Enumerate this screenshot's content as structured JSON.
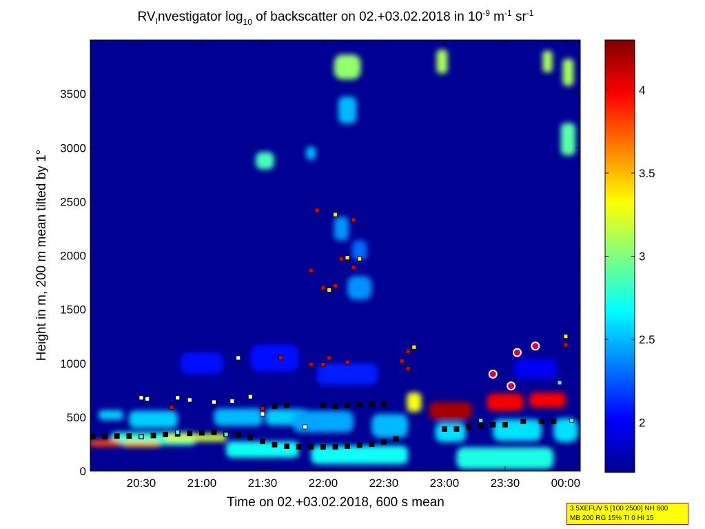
{
  "chart_data": {
    "type": "heatmap",
    "title": {
      "prefix": "RV",
      "prefix_sub": "I",
      "main": "nvestigator log",
      "log_base": "10",
      "after": " of backscatter on 02.+03.02.2018 in 10",
      "exp1": "-9",
      "unit1": " m",
      "exp2": "-1",
      "unit2": " sr",
      "exp3": "-1"
    },
    "xlabel": "Time on 02.+03.02.2018, 600 s mean",
    "ylabel": "Height in m, 200 m mean tilted by 1°",
    "x_range_hours": [
      20.08,
      24.12
    ],
    "x_ticks": [
      {
        "label": "20:30",
        "h": 20.5
      },
      {
        "label": "21:00",
        "h": 21.0
      },
      {
        "label": "21:30",
        "h": 21.5
      },
      {
        "label": "22:00",
        "h": 22.0
      },
      {
        "label": "22:30",
        "h": 22.5
      },
      {
        "label": "23:00",
        "h": 23.0
      },
      {
        "label": "23:30",
        "h": 23.5
      },
      {
        "label": "00:00",
        "h": 24.0
      }
    ],
    "ylim": [
      0,
      4000
    ],
    "y_ticks": [
      {
        "label": "0",
        "v": 0
      },
      {
        "label": "500",
        "v": 500
      },
      {
        "label": "1000",
        "v": 1000
      },
      {
        "label": "1500",
        "v": 1500
      },
      {
        "label": "2000",
        "v": 2000
      },
      {
        "label": "2500",
        "v": 2500
      },
      {
        "label": "3000",
        "v": 3000
      },
      {
        "label": "3500",
        "v": 3500
      }
    ],
    "colorbar": {
      "range": [
        1.7,
        4.3
      ],
      "ticks": [
        {
          "label": "2",
          "v": 2
        },
        {
          "label": "2.5",
          "v": 2.5
        },
        {
          "label": "3",
          "v": 3
        },
        {
          "label": "3.5",
          "v": 3.5
        },
        {
          "label": "4",
          "v": 4
        }
      ],
      "colormap": "jet"
    },
    "background_value": 1.75,
    "patches": [
      {
        "h": 20.25,
        "z": 520,
        "dh": 0.2,
        "dz": 90,
        "v": 2.55
      },
      {
        "h": 20.6,
        "z": 480,
        "dh": 0.4,
        "dz": 160,
        "v": 2.55
      },
      {
        "h": 21.3,
        "z": 500,
        "dh": 0.4,
        "dz": 160,
        "v": 2.5
      },
      {
        "h": 21.7,
        "z": 500,
        "dh": 0.35,
        "dz": 150,
        "v": 2.55
      },
      {
        "h": 22.0,
        "z": 460,
        "dh": 0.5,
        "dz": 200,
        "v": 2.45
      },
      {
        "h": 22.55,
        "z": 420,
        "dh": 0.3,
        "dz": 220,
        "v": 2.5
      },
      {
        "h": 23.05,
        "z": 360,
        "dh": 0.25,
        "dz": 180,
        "v": 2.6
      },
      {
        "h": 23.6,
        "z": 380,
        "dh": 0.4,
        "dz": 200,
        "v": 2.6
      },
      {
        "h": 24.0,
        "z": 380,
        "dh": 0.2,
        "dz": 220,
        "v": 2.6
      },
      {
        "h": 20.6,
        "z": 300,
        "dh": 0.7,
        "dz": 120,
        "v": 2.8
      },
      {
        "h": 21.5,
        "z": 200,
        "dh": 0.6,
        "dz": 150,
        "v": 2.7
      },
      {
        "h": 22.3,
        "z": 150,
        "dh": 0.8,
        "dz": 170,
        "v": 2.7
      },
      {
        "h": 23.5,
        "z": 120,
        "dh": 0.8,
        "dz": 200,
        "v": 2.75
      },
      {
        "h": 20.2,
        "z": 260,
        "dh": 0.25,
        "dz": 60,
        "v": 3.8
      },
      {
        "h": 20.5,
        "z": 250,
        "dh": 0.3,
        "dz": 50,
        "v": 3.5
      },
      {
        "h": 20.95,
        "z": 310,
        "dh": 0.5,
        "dz": 70,
        "v": 3.2
      },
      {
        "h": 23.05,
        "z": 560,
        "dh": 0.35,
        "dz": 160,
        "v": 4.2
      },
      {
        "h": 23.5,
        "z": 640,
        "dh": 0.3,
        "dz": 160,
        "v": 4.0
      },
      {
        "h": 23.85,
        "z": 660,
        "dh": 0.3,
        "dz": 140,
        "v": 4.0
      },
      {
        "h": 22.75,
        "z": 640,
        "dh": 0.12,
        "dz": 180,
        "v": 3.3
      },
      {
        "h": 21.0,
        "z": 1000,
        "dh": 0.35,
        "dz": 200,
        "v": 2.05
      },
      {
        "h": 21.6,
        "z": 1050,
        "dh": 0.4,
        "dz": 250,
        "v": 2.05
      },
      {
        "h": 22.2,
        "z": 900,
        "dh": 0.5,
        "dz": 200,
        "v": 2.1
      },
      {
        "h": 23.75,
        "z": 950,
        "dh": 0.35,
        "dz": 180,
        "v": 2.0
      },
      {
        "h": 22.3,
        "z": 1700,
        "dh": 0.2,
        "dz": 220,
        "v": 2.4
      },
      {
        "h": 22.15,
        "z": 2250,
        "dh": 0.12,
        "dz": 220,
        "v": 2.4
      },
      {
        "h": 22.3,
        "z": 2050,
        "dh": 0.12,
        "dz": 180,
        "v": 2.3
      },
      {
        "h": 21.52,
        "z": 2880,
        "dh": 0.15,
        "dz": 160,
        "v": 2.85
      },
      {
        "h": 21.9,
        "z": 2950,
        "dh": 0.08,
        "dz": 120,
        "v": 2.5
      },
      {
        "h": 22.2,
        "z": 3750,
        "dh": 0.22,
        "dz": 230,
        "v": 3.05
      },
      {
        "h": 22.2,
        "z": 3350,
        "dh": 0.15,
        "dz": 250,
        "v": 2.5
      },
      {
        "h": 22.98,
        "z": 3800,
        "dh": 0.09,
        "dz": 220,
        "v": 3.1
      },
      {
        "h": 23.85,
        "z": 3800,
        "dh": 0.08,
        "dz": 200,
        "v": 3.1
      },
      {
        "h": 24.02,
        "z": 3700,
        "dh": 0.09,
        "dz": 250,
        "v": 3.1
      },
      {
        "h": 24.02,
        "z": 3080,
        "dh": 0.12,
        "dz": 300,
        "v": 2.9
      }
    ],
    "markers": [
      {
        "x": 20.1,
        "y": 320,
        "c": "black"
      },
      {
        "x": 20.2,
        "y": 320,
        "c": "black"
      },
      {
        "x": 20.3,
        "y": 325,
        "c": "black"
      },
      {
        "x": 20.4,
        "y": 325,
        "c": "black"
      },
      {
        "x": 20.5,
        "y": 320,
        "c": "black"
      },
      {
        "x": 20.6,
        "y": 330,
        "c": "black"
      },
      {
        "x": 20.7,
        "y": 340,
        "c": "black"
      },
      {
        "x": 20.8,
        "y": 345,
        "c": "black"
      },
      {
        "x": 20.9,
        "y": 350,
        "c": "black"
      },
      {
        "x": 21.0,
        "y": 355,
        "c": "black"
      },
      {
        "x": 21.1,
        "y": 360,
        "c": "black"
      },
      {
        "x": 21.2,
        "y": 345,
        "c": "black"
      },
      {
        "x": 21.3,
        "y": 335,
        "c": "black"
      },
      {
        "x": 21.4,
        "y": 310,
        "c": "black"
      },
      {
        "x": 21.5,
        "y": 275,
        "c": "black"
      },
      {
        "x": 21.6,
        "y": 245,
        "c": "black"
      },
      {
        "x": 21.7,
        "y": 230,
        "c": "black"
      },
      {
        "x": 21.8,
        "y": 225,
        "c": "black"
      },
      {
        "x": 21.9,
        "y": 225,
        "c": "black"
      },
      {
        "x": 22.0,
        "y": 225,
        "c": "black"
      },
      {
        "x": 22.1,
        "y": 225,
        "c": "black"
      },
      {
        "x": 22.2,
        "y": 230,
        "c": "black"
      },
      {
        "x": 22.3,
        "y": 240,
        "c": "black"
      },
      {
        "x": 22.4,
        "y": 250,
        "c": "black"
      },
      {
        "x": 22.5,
        "y": 270,
        "c": "black"
      },
      {
        "x": 22.6,
        "y": 300,
        "c": "black"
      },
      {
        "x": 21.6,
        "y": 600,
        "c": "black"
      },
      {
        "x": 21.7,
        "y": 610,
        "c": "black"
      },
      {
        "x": 22.0,
        "y": 610,
        "c": "black"
      },
      {
        "x": 22.1,
        "y": 600,
        "c": "black"
      },
      {
        "x": 22.2,
        "y": 610,
        "c": "black"
      },
      {
        "x": 22.3,
        "y": 620,
        "c": "black"
      },
      {
        "x": 22.4,
        "y": 620,
        "c": "black"
      },
      {
        "x": 22.5,
        "y": 620,
        "c": "black"
      },
      {
        "x": 23.0,
        "y": 390,
        "c": "black"
      },
      {
        "x": 23.1,
        "y": 390,
        "c": "black"
      },
      {
        "x": 23.2,
        "y": 410,
        "c": "black"
      },
      {
        "x": 23.3,
        "y": 420,
        "c": "black"
      },
      {
        "x": 23.4,
        "y": 430,
        "c": "black"
      },
      {
        "x": 23.5,
        "y": 430,
        "c": "black"
      },
      {
        "x": 23.65,
        "y": 460,
        "c": "black"
      },
      {
        "x": 23.8,
        "y": 460,
        "c": "black"
      },
      {
        "x": 23.9,
        "y": 460,
        "c": "black"
      },
      {
        "x": 20.5,
        "y": 680,
        "c": "white"
      },
      {
        "x": 20.55,
        "y": 670,
        "c": "white"
      },
      {
        "x": 20.8,
        "y": 680,
        "c": "white"
      },
      {
        "x": 20.9,
        "y": 660,
        "c": "white"
      },
      {
        "x": 21.1,
        "y": 640,
        "c": "white"
      },
      {
        "x": 21.25,
        "y": 650,
        "c": "white"
      },
      {
        "x": 21.4,
        "y": 690,
        "c": "white"
      },
      {
        "x": 21.5,
        "y": 530,
        "c": "white"
      },
      {
        "x": 21.3,
        "y": 1050,
        "c": "white"
      },
      {
        "x": 21.85,
        "y": 410,
        "c": "white"
      },
      {
        "x": 22.3,
        "y": 1970,
        "c": "yellow"
      },
      {
        "x": 22.1,
        "y": 2380,
        "c": "yellow"
      },
      {
        "x": 22.2,
        "y": 1980,
        "c": "yellow"
      },
      {
        "x": 22.05,
        "y": 1680,
        "c": "yellow"
      },
      {
        "x": 22.75,
        "y": 1150,
        "c": "yellow"
      },
      {
        "x": 24.0,
        "y": 1250,
        "c": "yellow"
      },
      {
        "x": 20.5,
        "y": 320,
        "c": "cyan"
      },
      {
        "x": 20.8,
        "y": 360,
        "c": "cyan"
      },
      {
        "x": 21.2,
        "y": 340,
        "c": "cyan"
      },
      {
        "x": 23.3,
        "y": 470,
        "c": "cyan"
      },
      {
        "x": 24.05,
        "y": 470,
        "c": "cyan"
      },
      {
        "x": 23.95,
        "y": 820,
        "c": "cyan"
      },
      {
        "x": 21.95,
        "y": 2420,
        "c": "red"
      },
      {
        "x": 22.25,
        "y": 2330,
        "c": "red"
      },
      {
        "x": 21.9,
        "y": 1860,
        "c": "red"
      },
      {
        "x": 22.15,
        "y": 1970,
        "c": "red"
      },
      {
        "x": 22.25,
        "y": 1890,
        "c": "red"
      },
      {
        "x": 22.0,
        "y": 1700,
        "c": "red"
      },
      {
        "x": 22.1,
        "y": 1720,
        "c": "red"
      },
      {
        "x": 21.9,
        "y": 990,
        "c": "red"
      },
      {
        "x": 22.0,
        "y": 990,
        "c": "red"
      },
      {
        "x": 22.05,
        "y": 1050,
        "c": "red"
      },
      {
        "x": 22.2,
        "y": 1010,
        "c": "red"
      },
      {
        "x": 21.65,
        "y": 1050,
        "c": "red"
      },
      {
        "x": 22.65,
        "y": 1020,
        "c": "red"
      },
      {
        "x": 22.7,
        "y": 1110,
        "c": "red"
      },
      {
        "x": 22.7,
        "y": 950,
        "c": "red"
      },
      {
        "x": 24.0,
        "y": 1170,
        "c": "red"
      },
      {
        "x": 21.5,
        "y": 580,
        "c": "red"
      },
      {
        "x": 20.75,
        "y": 590,
        "c": "red"
      }
    ],
    "circles": [
      {
        "x": 23.4,
        "y": 900
      },
      {
        "x": 23.6,
        "y": 1100
      },
      {
        "x": 23.75,
        "y": 1160
      },
      {
        "x": 23.55,
        "y": 790
      }
    ]
  },
  "info_box": {
    "line1": "3.5XEFUV 5 [100 2500] NH 600",
    "line2": "MB 200 RG 15% TI 0 HI 15"
  }
}
